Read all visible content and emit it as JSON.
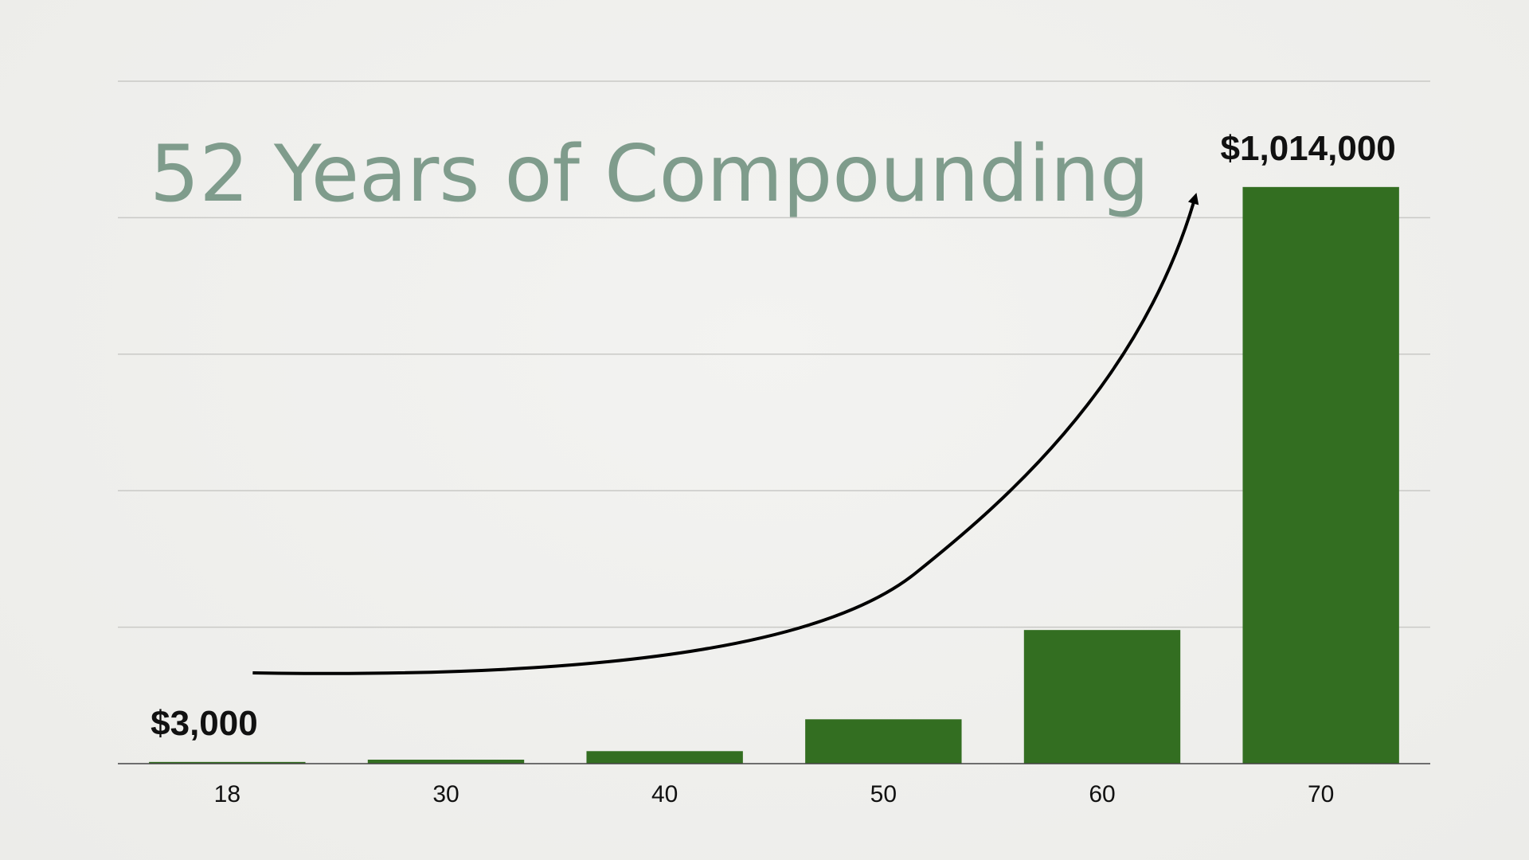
{
  "colors": {
    "bar": "#336e21",
    "title": "#7f9c8c",
    "grid": "#c9c9c6",
    "axis": "#444444",
    "arrow": "#000000",
    "background": "#efefed"
  },
  "chart_data": {
    "type": "bar",
    "title": "52 Years of Compounding",
    "xlabel": "",
    "ylabel": "",
    "categories": [
      "18",
      "30",
      "40",
      "50",
      "60",
      "70"
    ],
    "values": [
      3000,
      7000,
      22000,
      78000,
      235000,
      1014000
    ],
    "ylim": [
      0,
      1200000
    ],
    "grid": true,
    "gridlines": [
      0,
      240000,
      480000,
      720000,
      960000
    ],
    "legend": "none",
    "data_labels": {
      "first": "$3,000",
      "last": "$1,014,000"
    },
    "annotation": "curved-growth-arrow"
  }
}
